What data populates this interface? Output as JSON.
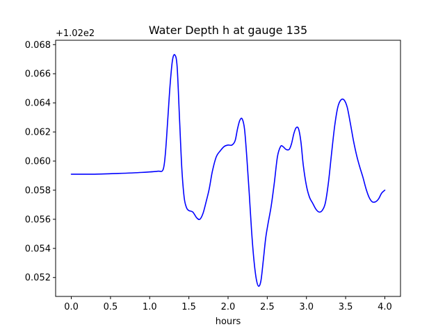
{
  "chart_data": {
    "type": "line",
    "title": "Water Depth h at gauge 135",
    "xlabel": "hours",
    "ylabel": "",
    "y_offset_text": "+1.02e2",
    "xlim": [
      -0.2,
      4.2
    ],
    "ylim": [
      0.0507,
      0.0683
    ],
    "xticks": [
      0.0,
      0.5,
      1.0,
      1.5,
      2.0,
      2.5,
      3.0,
      3.5,
      4.0
    ],
    "xtick_labels": [
      "0.0",
      "0.5",
      "1.0",
      "1.5",
      "2.0",
      "2.5",
      "3.0",
      "3.5",
      "4.0"
    ],
    "yticks": [
      0.052,
      0.054,
      0.056,
      0.058,
      0.06,
      0.062,
      0.064,
      0.066,
      0.068
    ],
    "ytick_labels": [
      "0.052",
      "0.054",
      "0.056",
      "0.058",
      "0.060",
      "0.062",
      "0.064",
      "0.066",
      "0.068"
    ],
    "grid": false,
    "series": [
      {
        "color": "#0000ff",
        "x": [
          0.0,
          0.3,
          0.6,
          0.9,
          1.1,
          1.17,
          1.2,
          1.23,
          1.26,
          1.29,
          1.32,
          1.35,
          1.38,
          1.41,
          1.44,
          1.47,
          1.5,
          1.55,
          1.6,
          1.64,
          1.68,
          1.72,
          1.76,
          1.8,
          1.85,
          1.9,
          1.95,
          2.0,
          2.05,
          2.09,
          2.12,
          2.15,
          2.18,
          2.21,
          2.24,
          2.27,
          2.3,
          2.33,
          2.36,
          2.39,
          2.42,
          2.45,
          2.48,
          2.51,
          2.55,
          2.59,
          2.63,
          2.67,
          2.7,
          2.74,
          2.78,
          2.81,
          2.84,
          2.87,
          2.9,
          2.93,
          2.96,
          3.0,
          3.04,
          3.08,
          3.12,
          3.16,
          3.2,
          3.24,
          3.28,
          3.32,
          3.36,
          3.4,
          3.44,
          3.48,
          3.52,
          3.56,
          3.6,
          3.64,
          3.68,
          3.72,
          3.76,
          3.8,
          3.84,
          3.88,
          3.92,
          3.96,
          4.0
        ],
        "y": [
          0.0591,
          0.0591,
          0.05915,
          0.05922,
          0.0593,
          0.0594,
          0.0605,
          0.0628,
          0.0652,
          0.0669,
          0.0673,
          0.0665,
          0.063,
          0.0595,
          0.0575,
          0.0568,
          0.0566,
          0.0565,
          0.0561,
          0.056,
          0.0564,
          0.0572,
          0.0581,
          0.0593,
          0.0603,
          0.0607,
          0.061,
          0.0611,
          0.0611,
          0.0614,
          0.0622,
          0.0628,
          0.0629,
          0.0622,
          0.0602,
          0.0578,
          0.0552,
          0.0532,
          0.0519,
          0.0514,
          0.0518,
          0.0532,
          0.0547,
          0.0557,
          0.0569,
          0.0585,
          0.0603,
          0.061,
          0.061,
          0.0608,
          0.0608,
          0.0612,
          0.0619,
          0.0623,
          0.0622,
          0.0613,
          0.0597,
          0.0583,
          0.0575,
          0.0571,
          0.0567,
          0.0565,
          0.0566,
          0.0571,
          0.0585,
          0.0605,
          0.0624,
          0.0637,
          0.0642,
          0.0642,
          0.0637,
          0.0626,
          0.0614,
          0.0604,
          0.0596,
          0.0589,
          0.0581,
          0.0575,
          0.0572,
          0.0572,
          0.0574,
          0.0578,
          0.058
        ]
      }
    ]
  }
}
